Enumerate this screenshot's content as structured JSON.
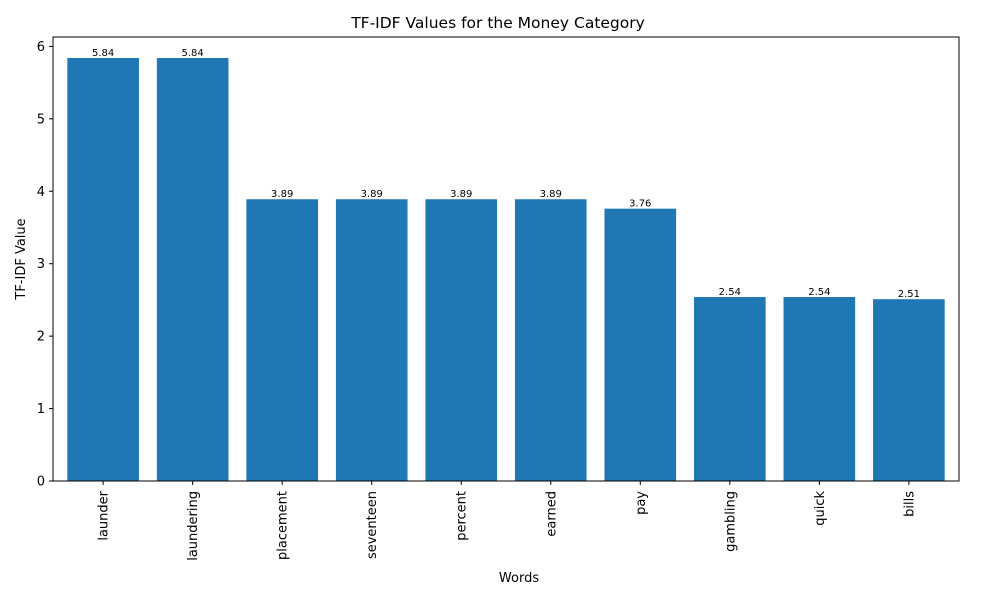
{
  "chart_data": {
    "type": "bar",
    "title": "TF-IDF Values for the Money Category",
    "xlabel": "Words",
    "ylabel": "TF-IDF Value",
    "categories": [
      "launder",
      "laundering",
      "placement",
      "seventeen",
      "percent",
      "earned",
      "pay",
      "gambling",
      "quick",
      "bills"
    ],
    "values": [
      5.84,
      5.84,
      3.89,
      3.89,
      3.89,
      3.89,
      3.76,
      2.54,
      2.54,
      2.51
    ],
    "value_labels": [
      "5.84",
      "5.84",
      "3.89",
      "3.89",
      "3.89",
      "3.89",
      "3.76",
      "2.54",
      "2.54",
      "2.51"
    ],
    "ylim": [
      0,
      6.13
    ],
    "yticks": [
      0,
      1,
      2,
      3,
      4,
      5,
      6
    ],
    "bar_color": "#1f77b4",
    "grid": false,
    "legend": "none"
  }
}
